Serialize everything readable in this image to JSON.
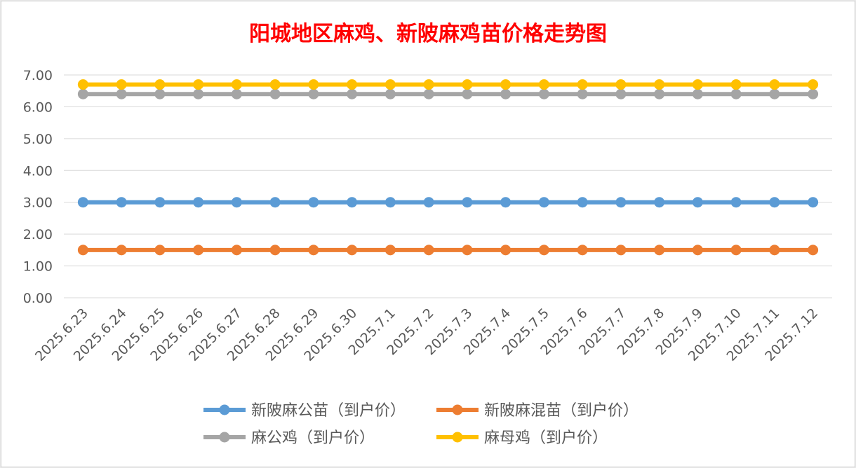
{
  "chart_data": {
    "type": "line",
    "title": "阳城地区麻鸡、新陂麻鸡苗价格走势图",
    "xlabel": "",
    "ylabel": "",
    "categories": [
      "2025.6.23",
      "2025.6.24",
      "2025.6.25",
      "2025.6.26",
      "2025.6.27",
      "2025.6.28",
      "2025.6.29",
      "2025.6.30",
      "2025.7.1",
      "2025.7.2",
      "2025.7.3",
      "2025.7.4",
      "2025.7.5",
      "2025.7.6",
      "2025.7.7",
      "2025.7.8",
      "2025.7.9",
      "2025.7.10",
      "2025.7.11",
      "2025.7.12"
    ],
    "ylim": [
      0,
      7
    ],
    "yticks": [
      "0.00",
      "1.00",
      "2.00",
      "3.00",
      "4.00",
      "5.00",
      "6.00",
      "7.00"
    ],
    "grid": true,
    "legend_position": "bottom",
    "series": [
      {
        "name": "新陂麻公苗（到户价）",
        "color": "#5b9bd5",
        "values": [
          3,
          3,
          3,
          3,
          3,
          3,
          3,
          3,
          3,
          3,
          3,
          3,
          3,
          3,
          3,
          3,
          3,
          3,
          3,
          3
        ]
      },
      {
        "name": "新陂麻混苗（到户价）",
        "color": "#ed7d31",
        "values": [
          1.5,
          1.5,
          1.5,
          1.5,
          1.5,
          1.5,
          1.5,
          1.5,
          1.5,
          1.5,
          1.5,
          1.5,
          1.5,
          1.5,
          1.5,
          1.5,
          1.5,
          1.5,
          1.5,
          1.5
        ]
      },
      {
        "name": "麻公鸡（到户价）",
        "color": "#a5a5a5",
        "values": [
          6.4,
          6.4,
          6.4,
          6.4,
          6.4,
          6.4,
          6.4,
          6.4,
          6.4,
          6.4,
          6.4,
          6.4,
          6.4,
          6.4,
          6.4,
          6.4,
          6.4,
          6.4,
          6.4,
          6.4
        ]
      },
      {
        "name": "麻母鸡（到户价）",
        "color": "#ffc000",
        "values": [
          6.7,
          6.7,
          6.7,
          6.7,
          6.7,
          6.7,
          6.7,
          6.7,
          6.7,
          6.7,
          6.7,
          6.7,
          6.7,
          6.7,
          6.7,
          6.7,
          6.7,
          6.7,
          6.7,
          6.7
        ]
      }
    ],
    "title_color": "#ff0000",
    "grid_color": "#d9d9d9"
  }
}
